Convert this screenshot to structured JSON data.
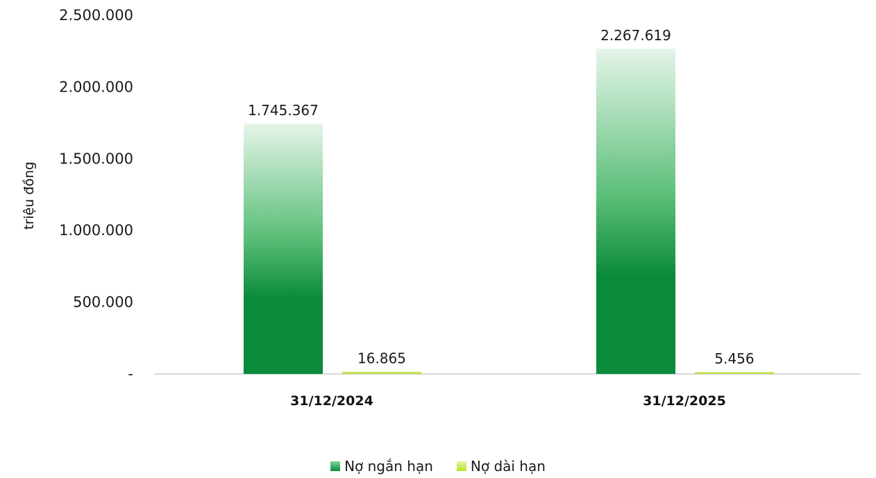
{
  "chart_data": {
    "type": "bar",
    "categories": [
      "31/12/2024",
      "31/12/2025"
    ],
    "series": [
      {
        "name": "Nợ ngắn hạn",
        "values": [
          1745367,
          2267619
        ],
        "labels": [
          "1.745.367",
          "2.267.619"
        ],
        "color": "#0a8a3a"
      },
      {
        "name": "Nợ dài hạn",
        "values": [
          16865,
          5456
        ],
        "labels": [
          "16.865",
          "5.456"
        ],
        "color": "#b5e61d"
      }
    ],
    "ylabel": "triệu đồng",
    "ylim": [
      0,
      2500000
    ],
    "yticks": [
      {
        "value": 0,
        "label": "-"
      },
      {
        "value": 500000,
        "label": "500.000"
      },
      {
        "value": 1000000,
        "label": "1.000.000"
      },
      {
        "value": 1500000,
        "label": "1.500.000"
      },
      {
        "value": 2000000,
        "label": "2.000.000"
      },
      {
        "value": 2500000,
        "label": "2.500.000"
      }
    ],
    "grid": false,
    "legend_position": "bottom"
  }
}
